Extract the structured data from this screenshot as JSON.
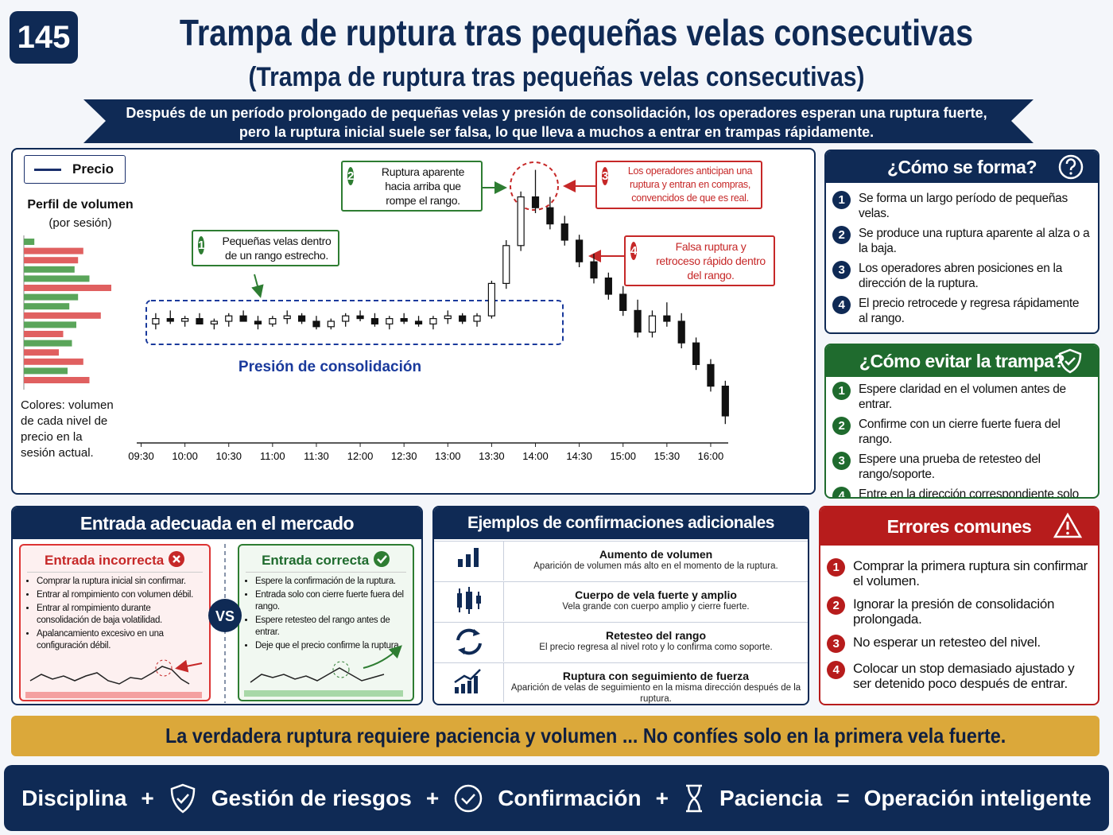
{
  "header": {
    "badge": "145",
    "title": "Trampa de ruptura tras pequeñas velas consecutivas",
    "subtitle": "(Trampa de ruptura tras pequeñas velas consecutivas)",
    "banner": [
      "Después de un período prolongado de pequeñas velas y presión de consolidación, los operadores esperan una ruptura fuerte,",
      "pero la ruptura inicial suele ser falsa, lo que lleva a muchos a entrar en trampas rápidamente."
    ]
  },
  "chart_data": {
    "type": "candlestick",
    "legend": "Precio",
    "x": [
      580,
      590,
      600,
      610,
      620,
      630,
      640,
      650,
      660,
      670,
      680,
      690,
      700,
      710,
      720,
      730,
      740,
      750,
      760,
      770,
      780,
      790,
      800,
      810,
      820,
      830,
      840,
      850,
      860,
      870,
      880,
      890,
      900,
      910,
      920,
      930,
      940,
      950,
      960,
      970
    ],
    "open": [
      39,
      41,
      40,
      41,
      39,
      40,
      42,
      40,
      39,
      41,
      42,
      40,
      38,
      40,
      42,
      41,
      39,
      41,
      40,
      39,
      41,
      42,
      40,
      42,
      54,
      68,
      86,
      82,
      76,
      70,
      62,
      56,
      50,
      44,
      36,
      42,
      40,
      32,
      24,
      16
    ],
    "high": [
      43,
      44,
      42,
      43,
      41,
      43,
      44,
      42,
      42,
      44,
      43,
      42,
      41,
      43,
      44,
      43,
      42,
      43,
      42,
      42,
      44,
      43,
      43,
      55,
      70,
      88,
      96,
      86,
      79,
      72,
      65,
      58,
      53,
      48,
      44,
      47,
      43,
      34,
      26,
      18
    ],
    "low": [
      37,
      39,
      38,
      39,
      37,
      38,
      40,
      37,
      38,
      39,
      39,
      37,
      37,
      38,
      40,
      38,
      37,
      39,
      38,
      37,
      39,
      39,
      38,
      41,
      52,
      66,
      80,
      74,
      68,
      60,
      54,
      48,
      42,
      34,
      34,
      38,
      30,
      22,
      14,
      2
    ],
    "close": [
      41,
      40,
      41,
      39,
      40,
      42,
      40,
      39,
      41,
      42,
      40,
      38,
      40,
      42,
      41,
      39,
      41,
      40,
      39,
      41,
      42,
      40,
      42,
      54,
      68,
      86,
      82,
      76,
      70,
      62,
      56,
      50,
      44,
      36,
      42,
      40,
      32,
      24,
      16,
      5
    ],
    "up_color": "#ffffff",
    "down_color": "#111111",
    "line_color": "#1a2f6b",
    "xlim": [
      567,
      972
    ],
    "ylim": [
      0,
      100
    ],
    "xticks": [
      {
        "value": 570,
        "label": "09:30"
      },
      {
        "value": 600,
        "label": "10:00"
      },
      {
        "value": 630,
        "label": "10:30"
      },
      {
        "value": 660,
        "label": "11:00"
      },
      {
        "value": 690,
        "label": "11:30"
      },
      {
        "value": 720,
        "label": "12:00"
      },
      {
        "value": 750,
        "label": "12:30"
      },
      {
        "value": 780,
        "label": "13:00"
      },
      {
        "value": 810,
        "label": "13:30"
      },
      {
        "value": 840,
        "label": "14:00"
      },
      {
        "value": 870,
        "label": "14:30"
      },
      {
        "value": 900,
        "label": "15:00"
      },
      {
        "value": 930,
        "label": "15:30"
      },
      {
        "value": 960,
        "label": "16:00"
      }
    ],
    "consolidation_label": "Presión de consolidación",
    "annotations": [
      {
        "n": "1",
        "text": "Pequeñas velas dentro de un rango estrecho."
      },
      {
        "n": "2",
        "text": "Ruptura aparente hacia arriba que rompe el rango."
      },
      {
        "n": "3",
        "text": "Los operadores anticipan una ruptura y entran en compras, convencidos de que es real."
      },
      {
        "n": "4",
        "text": "Falsa ruptura y retroceso rápido dentro del rango."
      }
    ],
    "volume_profile": {
      "title": "Perfil de volumen",
      "subtitle": "(por sesión)",
      "note": "Colores: volumen de cada nivel de precio en la sesión actual.",
      "xlim": [
        0,
        100
      ],
      "values": [
        12,
        68,
        62,
        58,
        75,
        100,
        62,
        52,
        88,
        60,
        45,
        55,
        40,
        68,
        50,
        75
      ],
      "colors": [
        "#5aa55a",
        "#e06060",
        "#e06060",
        "#5aa55a",
        "#5aa55a",
        "#e06060",
        "#5aa55a",
        "#5aa55a",
        "#e06060",
        "#5aa55a",
        "#e06060",
        "#5aa55a",
        "#e06060",
        "#e06060",
        "#5aa55a",
        "#e06060"
      ]
    }
  },
  "forma": {
    "title": "¿Cómo se forma?",
    "items": [
      {
        "n": "1",
        "text": "Se forma un largo período de pequeñas velas."
      },
      {
        "n": "2",
        "text": "Se produce una ruptura aparente al alza o a la baja."
      },
      {
        "n": "3",
        "text": "Los operadores abren posiciones en la dirección de la ruptura."
      },
      {
        "n": "4",
        "text": "El precio retrocede y regresa rápidamente al rango."
      }
    ]
  },
  "evitar": {
    "title": "¿Cómo evitar la trampa?",
    "items": [
      {
        "n": "1",
        "text": "Espere claridad en el volumen antes de entrar."
      },
      {
        "n": "2",
        "text": "Confirme con un cierre fuerte fuera del rango."
      },
      {
        "n": "3",
        "text": "Espere una prueba de retesteo del rango/soporte."
      },
      {
        "n": "4",
        "text": "Entre en la dirección correspondiente solo después de confirmar la ruptura."
      }
    ]
  },
  "entrada": {
    "title": "Entrada adecuada en el mercado",
    "vs": "VS",
    "incorrecta": {
      "title": "Entrada incorrecta",
      "items": [
        "Comprar la ruptura inicial sin confirmar.",
        "Entrar al rompimiento con volumen débil.",
        "Entrar al rompimiento durante consolidación de baja volatilidad.",
        "Apalancamiento excesivo en una configuración débil."
      ]
    },
    "correcta": {
      "title": "Entrada correcta",
      "items": [
        "Espere la confirmación de la ruptura.",
        "Entrada solo con cierre fuerte fuera del rango.",
        "Espere retesteo del rango antes de entrar.",
        "Deje que el precio confirme la ruptura."
      ]
    }
  },
  "ejemplos": {
    "title": "Ejemplos de confirmaciones adicionales",
    "rows": [
      {
        "title": "Aumento de volumen",
        "text": "Aparición de volumen más alto en el momento de la ruptura."
      },
      {
        "title": "Cuerpo de vela fuerte y amplio",
        "text": "Vela grande con cuerpo amplio y cierre fuerte."
      },
      {
        "title": "Retesteo del rango",
        "text": "El precio regresa al nivel roto y lo confirma como soporte."
      },
      {
        "title": "Ruptura con seguimiento de fuerza",
        "text": "Aparición de velas de seguimiento en la misma dirección después de la ruptura."
      }
    ]
  },
  "errores": {
    "title": "Errores comunes",
    "items": [
      {
        "n": "1",
        "text": "Comprar la primera ruptura sin confirmar el volumen."
      },
      {
        "n": "2",
        "text": "Ignorar la presión de consolidación prolongada."
      },
      {
        "n": "3",
        "text": "No esperar un retesteo del nivel."
      },
      {
        "n": "4",
        "text": "Colocar un stop demasiado ajustado y ser detenido poco después de entrar."
      }
    ]
  },
  "consejo": "La verdadera ruptura requiere paciencia y volumen ... No confíes solo en la primera vela fuerte.",
  "footer": {
    "items": [
      "Disciplina",
      "Gestión de riesgos",
      "Confirmación",
      "Paciencia"
    ],
    "operators": [
      "+",
      "+",
      "+",
      "="
    ],
    "result": "Operación inteligente"
  }
}
